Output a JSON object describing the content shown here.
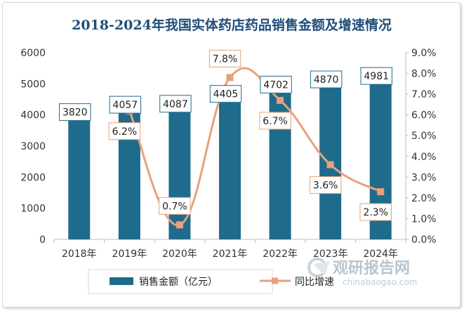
{
  "chart_data": {
    "type": "bar",
    "title": "2018-2024年我国实体药店药品销售金额及增速情况",
    "categories": [
      "2018年",
      "2019年",
      "2020年",
      "2021年",
      "2022年",
      "2023年",
      "2024年"
    ],
    "series": [
      {
        "name": "销售金额（亿元）",
        "type": "bar",
        "axis": "left",
        "values": [
          3820,
          4057,
          4087,
          4405,
          4702,
          4870,
          4981
        ],
        "labels": [
          "3820",
          "4057",
          "4087",
          "4405",
          "4702",
          "4870",
          "4981"
        ]
      },
      {
        "name": "同比增速",
        "type": "line",
        "axis": "right",
        "values": [
          null,
          6.2,
          0.7,
          7.8,
          6.7,
          3.6,
          2.3
        ],
        "labels": [
          "",
          "6.2%",
          "0.7%",
          "7.8%",
          "6.7%",
          "3.6%",
          "2.3%"
        ]
      }
    ],
    "left_axis": {
      "min": 0,
      "max": 6000,
      "step": 1000,
      "ticks": [
        "0",
        "1000",
        "2000",
        "3000",
        "4000",
        "5000",
        "6000"
      ]
    },
    "right_axis": {
      "min": 0,
      "max": 9,
      "step": 1,
      "ticks": [
        "0.0%",
        "1.0%",
        "2.0%",
        "3.0%",
        "4.0%",
        "5.0%",
        "6.0%",
        "7.0%",
        "8.0%",
        "9.0%"
      ]
    },
    "legend_position": "bottom"
  },
  "colors": {
    "title": "#1f4e79",
    "bar": "#1f6b8c",
    "bar_label_border": "#1f6b8c",
    "line": "#e8a17a",
    "line_label_border": "#e8a17a",
    "axis": "#bfbfbf"
  },
  "watermark": {
    "brand": "观研报告网",
    "url": "chinabaogao.com"
  }
}
